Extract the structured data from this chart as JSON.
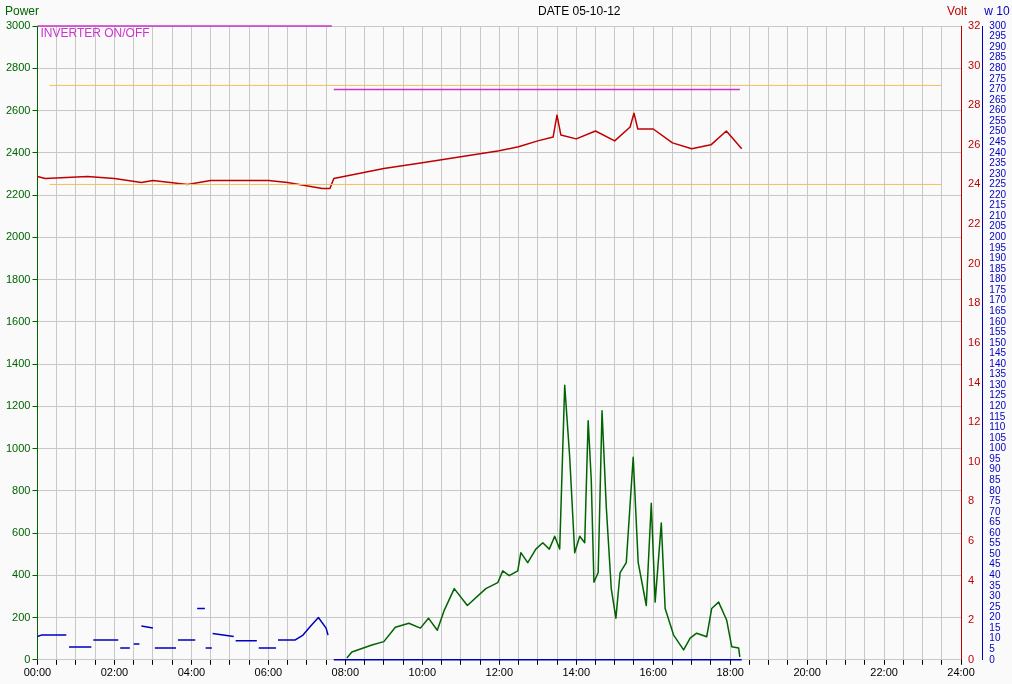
{
  "chart_data": {
    "type": "line",
    "title": "DATE 05-10-12",
    "ylabel": "Power",
    "y2label": "Volt",
    "y3label": "w 10",
    "xlim": [
      0,
      24
    ],
    "xticks": [
      {
        "value": 0,
        "label": "00:00"
      },
      {
        "value": 0.5,
        "label": null
      },
      {
        "value": 1,
        "label": null
      },
      {
        "value": 1.5,
        "label": null
      },
      {
        "value": 2,
        "label": "02:00"
      },
      {
        "value": 2.5,
        "label": null
      },
      {
        "value": 3,
        "label": null
      },
      {
        "value": 3.5,
        "label": null
      },
      {
        "value": 4,
        "label": "04:00"
      },
      {
        "value": 4.5,
        "label": null
      },
      {
        "value": 5,
        "label": null
      },
      {
        "value": 5.5,
        "label": null
      },
      {
        "value": 6,
        "label": "06:00"
      },
      {
        "value": 6.5,
        "label": null
      },
      {
        "value": 7,
        "label": null
      },
      {
        "value": 7.5,
        "label": null
      },
      {
        "value": 8,
        "label": "08:00"
      },
      {
        "value": 8.5,
        "label": null
      },
      {
        "value": 9,
        "label": null
      },
      {
        "value": 9.5,
        "label": null
      },
      {
        "value": 10,
        "label": "10:00"
      },
      {
        "value": 10.5,
        "label": null
      },
      {
        "value": 11,
        "label": null
      },
      {
        "value": 11.5,
        "label": null
      },
      {
        "value": 12,
        "label": "12:00"
      },
      {
        "value": 12.5,
        "label": null
      },
      {
        "value": 13,
        "label": null
      },
      {
        "value": 13.5,
        "label": null
      },
      {
        "value": 14,
        "label": "14:00"
      },
      {
        "value": 14.5,
        "label": null
      },
      {
        "value": 15,
        "label": null
      },
      {
        "value": 15.5,
        "label": null
      },
      {
        "value": 16,
        "label": "16:00"
      },
      {
        "value": 16.5,
        "label": null
      },
      {
        "value": 17,
        "label": null
      },
      {
        "value": 17.5,
        "label": null
      },
      {
        "value": 18,
        "label": "18:00"
      },
      {
        "value": 18.5,
        "label": null
      },
      {
        "value": 19,
        "label": null
      },
      {
        "value": 19.5,
        "label": null
      },
      {
        "value": 20,
        "label": "20:00"
      },
      {
        "value": 20.5,
        "label": null
      },
      {
        "value": 21,
        "label": null
      },
      {
        "value": 21.5,
        "label": null
      },
      {
        "value": 22,
        "label": "22:00"
      },
      {
        "value": 22.5,
        "label": null
      },
      {
        "value": 23,
        "label": null
      },
      {
        "value": 23.5,
        "label": null
      },
      {
        "value": 24,
        "label": "24:00"
      }
    ],
    "ylim": [
      0,
      3000
    ],
    "yticks": [
      0,
      200,
      400,
      600,
      800,
      1000,
      1200,
      1400,
      1600,
      1800,
      2000,
      2200,
      2400,
      2600,
      2800,
      3000
    ],
    "y2lim": [
      0,
      32
    ],
    "y2ticks": [
      0,
      2,
      4,
      6,
      8,
      10,
      12,
      14,
      16,
      18,
      20,
      22,
      24,
      26,
      28,
      30,
      32
    ],
    "y3lim": [
      0,
      300
    ],
    "y3ticks": [
      0,
      5,
      10,
      15,
      20,
      25,
      30,
      35,
      40,
      45,
      50,
      55,
      60,
      65,
      70,
      75,
      80,
      85,
      90,
      95,
      100,
      105,
      110,
      115,
      120,
      125,
      130,
      135,
      140,
      145,
      150,
      155,
      160,
      165,
      170,
      175,
      180,
      185,
      190,
      195,
      200,
      205,
      210,
      215,
      220,
      225,
      230,
      235,
      240,
      245,
      250,
      255,
      260,
      265,
      270,
      275,
      280,
      285,
      290,
      295,
      300
    ],
    "grid": true,
    "legend": false,
    "marker": "none",
    "line_style": "solid",
    "ref_lines": [
      {
        "axis": "y2",
        "value": 24,
        "color": "#f0c060"
      },
      {
        "axis": "y2",
        "value": 29,
        "color": "#f0c060"
      }
    ],
    "series": [
      {
        "color": "#006400",
        "x": [
          8.04,
          8.17,
          8.69,
          9.0,
          9.3,
          9.65,
          9.95,
          10.16,
          10.39,
          10.57,
          10.83,
          11.17,
          11.65,
          11.96,
          12.09,
          12.26,
          12.48,
          12.56,
          12.74,
          12.95,
          13.13,
          13.3,
          13.44,
          13.57,
          13.7,
          13.83,
          13.96,
          14.09,
          14.22,
          14.31,
          14.39,
          14.46,
          14.57,
          14.67,
          14.78,
          14.91,
          15.03,
          15.14,
          15.3,
          15.48,
          15.61,
          15.82,
          15.95,
          16.05,
          16.21,
          16.31,
          16.53,
          16.79,
          16.96,
          17.13,
          17.39,
          17.52,
          17.7,
          17.91,
          18.04,
          18.22,
          18.25
        ],
        "values": [
          9,
          37,
          70,
          86,
          154,
          173,
          150,
          197,
          140,
          234,
          337,
          257,
          337,
          365,
          421,
          398,
          421,
          507,
          460,
          524,
          554,
          524,
          585,
          524,
          1300,
          959,
          507,
          585,
          554,
          1132,
          852,
          367,
          413,
          1179,
          725,
          337,
          197,
          413,
          460,
          959,
          460,
          257,
          741,
          273,
          647,
          243,
          117,
          47,
          103,
          126,
          109,
          243,
          273,
          187,
          62,
          56,
          14
        ]
      },
      {
        "color": "#c00000",
        "axis": "y2",
        "x": [
          0,
          0.2,
          1.3,
          2.0,
          2.7,
          3.0,
          3.9,
          4.2,
          4.5,
          6.0,
          6.5,
          7.4,
          7.6,
          7.7,
          9.0,
          10.0,
          11.0,
          12.0,
          12.5,
          13.0,
          13.4,
          13.5,
          13.6,
          14.0,
          14.5,
          15.0,
          15.4,
          15.5,
          15.6,
          16.0,
          16.5,
          17.0,
          17.5,
          17.9,
          18.3
        ],
        "values": [
          24.4,
          24.3,
          24.4,
          24.3,
          24.1,
          24.2,
          24.0,
          24.1,
          24.2,
          24.2,
          24.1,
          23.8,
          23.8,
          24.3,
          24.8,
          25.1,
          25.4,
          25.7,
          25.9,
          26.2,
          26.4,
          27.5,
          26.5,
          26.3,
          26.7,
          26.2,
          26.9,
          27.6,
          26.8,
          26.8,
          26.1,
          25.8,
          26.0,
          26.7,
          25.8
        ]
      },
      {
        "color": "#0000c0",
        "axis": "y3",
        "x": [
          0,
          0.1,
          0.75,
          0.8,
          0.82,
          1.4,
          1.42,
          1.45,
          2.1,
          2.12,
          2.15,
          2.4,
          2.45,
          2.5,
          2.65,
          2.68,
          2.7,
          3.0,
          3.02,
          3.05,
          3.6,
          3.62,
          3.65,
          4.1,
          4.12,
          4.15,
          4.35,
          4.36,
          4.37,
          4.53,
          4.54,
          4.55,
          5.1,
          5.12,
          5.15,
          5.7,
          5.72,
          5.75,
          6.2,
          6.22,
          6.25,
          6.7,
          6.9,
          7.1,
          7.3,
          7.5,
          7.55,
          7.6,
          7.7,
          18.3
        ],
        "values": [
          11,
          11.7,
          11.7,
          null,
          6,
          6,
          null,
          9.4,
          9.4,
          null,
          5.6,
          5.6,
          null,
          7.5,
          7.5,
          null,
          16,
          15,
          null,
          5.6,
          5.6,
          null,
          9.4,
          9.4,
          null,
          24.3,
          24.3,
          null,
          5.6,
          5.6,
          null,
          12.5,
          11,
          null,
          9,
          9,
          null,
          5.6,
          5.6,
          null,
          9.4,
          9.4,
          11.7,
          16,
          20,
          15,
          11.7,
          null,
          0,
          0
        ]
      },
      {
        "name": "INVERTER ON/OFF",
        "color": "#cc33cc",
        "x": [
          0,
          7.65,
          7.68,
          7.7,
          18.25
        ],
        "values": [
          3000,
          3000,
          null,
          2700,
          2700
        ]
      }
    ]
  }
}
